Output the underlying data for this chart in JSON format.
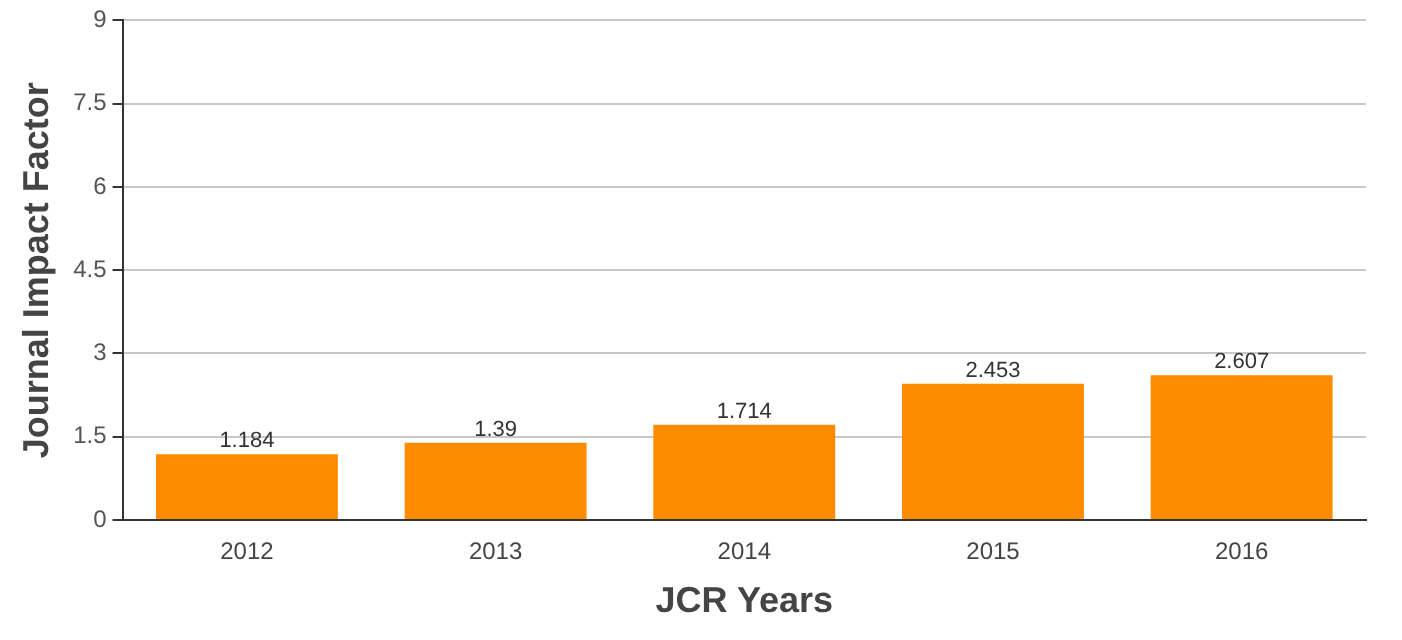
{
  "chart_data": {
    "type": "bar",
    "xlabel": "JCR Years",
    "ylabel": "Journal Impact Factor",
    "categories": [
      "2012",
      "2013",
      "2014",
      "2015",
      "2016"
    ],
    "values": [
      1.184,
      1.39,
      1.714,
      2.453,
      2.607
    ],
    "color": "#ff8c00",
    "ylim": [
      0,
      9
    ],
    "yticks": [
      0,
      1.5,
      3,
      4.5,
      6,
      7.5,
      9
    ],
    "grid": "y",
    "data_labels": true
  }
}
